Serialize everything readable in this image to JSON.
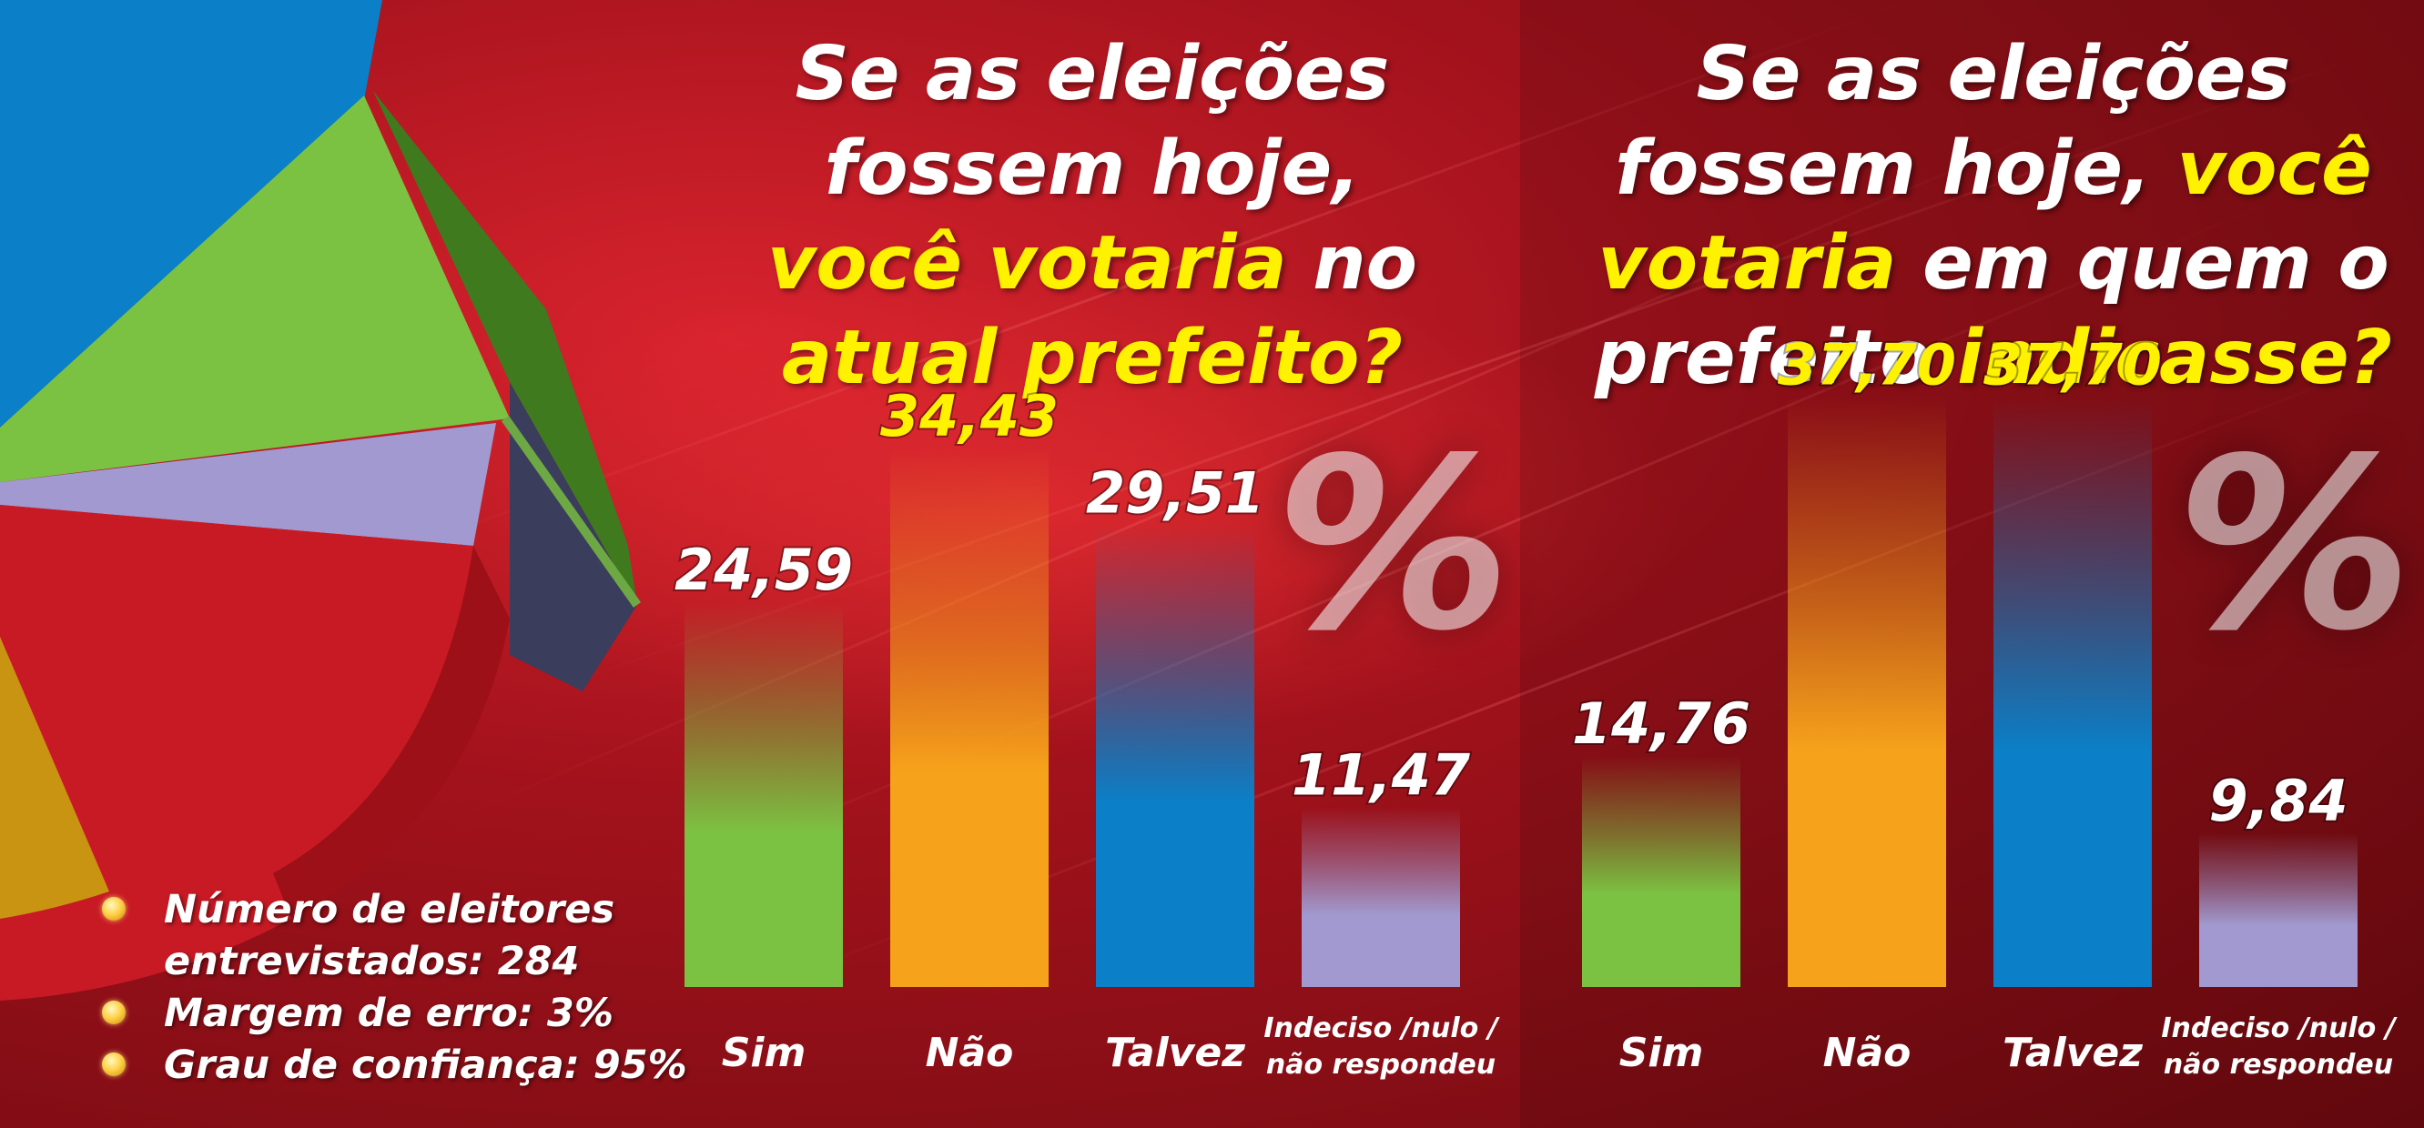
{
  "colors": {
    "sim": "#7cc242",
    "nao": "#f7a21b",
    "talvez": "#0b7fc7",
    "indeciso": "#a199cf",
    "highlight": "#fff200",
    "background": "#b3141e"
  },
  "chart_data": [
    {
      "type": "bar",
      "title_parts": [
        {
          "text": "Se as eleições",
          "hl": false,
          "br": true
        },
        {
          "text": "fossem hoje,",
          "hl": false,
          "br": true
        },
        {
          "text": "você votaria",
          "hl": true,
          "br": false
        },
        {
          "text": " no",
          "hl": false,
          "br": true
        },
        {
          "text": "atual prefeito?",
          "hl": true,
          "br": false
        }
      ],
      "unit_symbol": "%",
      "categories": [
        "Sim",
        "Não",
        "Talvez",
        "Indeciso /nulo / não respondeu"
      ],
      "category_lines": [
        [
          "Sim"
        ],
        [
          "Não"
        ],
        [
          "Talvez"
        ],
        [
          "Indeciso /nulo /",
          "não respondeu"
        ]
      ],
      "values": [
        24.59,
        34.43,
        29.51,
        11.47
      ],
      "value_labels": [
        "24,59",
        "34,43",
        "29,51",
        "11,47"
      ],
      "value_label_colors": [
        "#ffffff",
        "#fff200",
        "#ffffff",
        "#ffffff"
      ],
      "ylim": [
        0,
        40
      ]
    },
    {
      "type": "bar",
      "title_parts": [
        {
          "text": "Se as eleições",
          "hl": false,
          "br": true
        },
        {
          "text": "fossem hoje, ",
          "hl": false,
          "br": false
        },
        {
          "text": "você",
          "hl": true,
          "br": true
        },
        {
          "text": "votaria",
          "hl": true,
          "br": false
        },
        {
          "text": " em quem o",
          "hl": false,
          "br": true
        },
        {
          "text": "prefeito ",
          "hl": false,
          "br": false
        },
        {
          "text": "indicasse?",
          "hl": true,
          "br": false
        }
      ],
      "unit_symbol": "%",
      "categories": [
        "Sim",
        "Não",
        "Talvez",
        "Indeciso /nulo / não respondeu"
      ],
      "category_lines": [
        [
          "Sim"
        ],
        [
          "Não"
        ],
        [
          "Talvez"
        ],
        [
          "Indeciso /nulo /",
          "não respondeu"
        ]
      ],
      "values": [
        14.76,
        37.7,
        37.7,
        9.84
      ],
      "value_labels": [
        "14,76",
        "37,70",
        "37,70",
        "9,84"
      ],
      "value_label_colors": [
        "#ffffff",
        "#fff200",
        "#fff200",
        "#ffffff"
      ],
      "ylim": [
        0,
        40
      ]
    }
  ],
  "notes": [
    {
      "line1": "Número de eleitores",
      "line2": "entrevistados: 284"
    },
    {
      "line1": "Margem de erro: 3%",
      "line2": ""
    },
    {
      "line1": "Grau de confiança: 95%",
      "line2": ""
    }
  ]
}
